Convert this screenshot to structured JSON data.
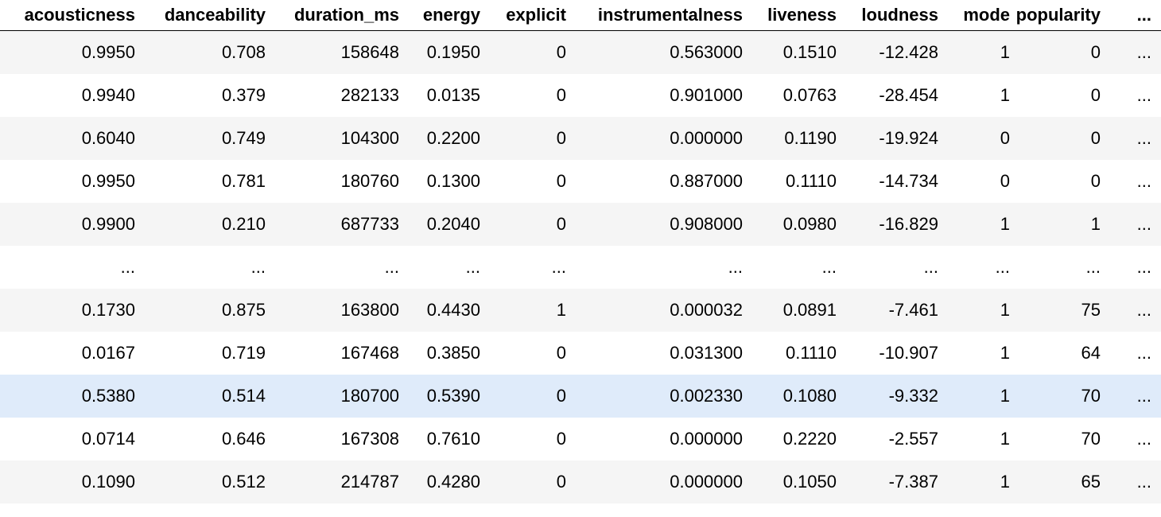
{
  "columns": [
    "acousticness",
    "danceability",
    "duration_ms",
    "energy",
    "explicit",
    "instrumentalness",
    "liveness",
    "loudness",
    "mode",
    "popularity",
    "..."
  ],
  "rows": [
    [
      "0.9950",
      "0.708",
      "158648",
      "0.1950",
      "0",
      "0.563000",
      "0.1510",
      "-12.428",
      "1",
      "0",
      "..."
    ],
    [
      "0.9940",
      "0.379",
      "282133",
      "0.0135",
      "0",
      "0.901000",
      "0.0763",
      "-28.454",
      "1",
      "0",
      "..."
    ],
    [
      "0.6040",
      "0.749",
      "104300",
      "0.2200",
      "0",
      "0.000000",
      "0.1190",
      "-19.924",
      "0",
      "0",
      "..."
    ],
    [
      "0.9950",
      "0.781",
      "180760",
      "0.1300",
      "0",
      "0.887000",
      "0.1110",
      "-14.734",
      "0",
      "0",
      "..."
    ],
    [
      "0.9900",
      "0.210",
      "687733",
      "0.2040",
      "0",
      "0.908000",
      "0.0980",
      "-16.829",
      "1",
      "1",
      "..."
    ],
    [
      "...",
      "...",
      "...",
      "...",
      "...",
      "...",
      "...",
      "...",
      "...",
      "...",
      "..."
    ],
    [
      "0.1730",
      "0.875",
      "163800",
      "0.4430",
      "1",
      "0.000032",
      "0.0891",
      "-7.461",
      "1",
      "75",
      "..."
    ],
    [
      "0.0167",
      "0.719",
      "167468",
      "0.3850",
      "0",
      "0.031300",
      "0.1110",
      "-10.907",
      "1",
      "64",
      "..."
    ],
    [
      "0.5380",
      "0.514",
      "180700",
      "0.5390",
      "0",
      "0.002330",
      "0.1080",
      "-9.332",
      "1",
      "70",
      "..."
    ],
    [
      "0.0714",
      "0.646",
      "167308",
      "0.7610",
      "0",
      "0.000000",
      "0.2220",
      "-2.557",
      "1",
      "70",
      "..."
    ],
    [
      "0.1090",
      "0.512",
      "214787",
      "0.4280",
      "0",
      "0.000000",
      "0.1050",
      "-7.387",
      "1",
      "65",
      "..."
    ]
  ],
  "highlighted_row": 8,
  "colors": {
    "stripe": "#f5f5f5",
    "hover": "#dfebfa",
    "text": "#000000"
  }
}
